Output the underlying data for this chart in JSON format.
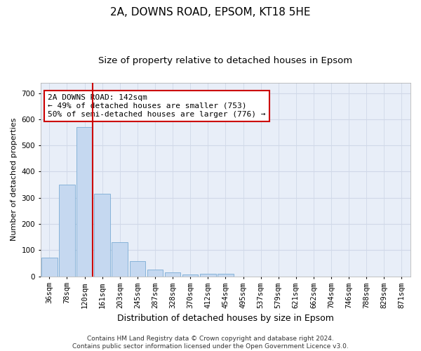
{
  "title1": "2A, DOWNS ROAD, EPSOM, KT18 5HE",
  "title2": "Size of property relative to detached houses in Epsom",
  "xlabel": "Distribution of detached houses by size in Epsom",
  "ylabel": "Number of detached properties",
  "bar_labels": [
    "36sqm",
    "78sqm",
    "120sqm",
    "161sqm",
    "203sqm",
    "245sqm",
    "287sqm",
    "328sqm",
    "370sqm",
    "412sqm",
    "454sqm",
    "495sqm",
    "537sqm",
    "579sqm",
    "621sqm",
    "662sqm",
    "704sqm",
    "746sqm",
    "788sqm",
    "829sqm",
    "871sqm"
  ],
  "bar_values": [
    70,
    350,
    570,
    315,
    130,
    57,
    25,
    14,
    8,
    10,
    10,
    0,
    0,
    0,
    0,
    0,
    0,
    0,
    0,
    0,
    0
  ],
  "bar_color": "#c5d8f0",
  "bar_edge_color": "#7aacd4",
  "grid_color": "#d0d8e8",
  "bg_color": "#e8eef8",
  "red_line_x": 2.45,
  "red_line_color": "#cc0000",
  "annotation_text": "2A DOWNS ROAD: 142sqm\n← 49% of detached houses are smaller (753)\n50% of semi-detached houses are larger (776) →",
  "annotation_box_color": "#ffffff",
  "annotation_box_edge": "#cc0000",
  "ylim": [
    0,
    740
  ],
  "yticks": [
    0,
    100,
    200,
    300,
    400,
    500,
    600,
    700
  ],
  "footer": "Contains HM Land Registry data © Crown copyright and database right 2024.\nContains public sector information licensed under the Open Government Licence v3.0.",
  "title1_fontsize": 11,
  "title2_fontsize": 9.5,
  "xlabel_fontsize": 9,
  "ylabel_fontsize": 8,
  "tick_fontsize": 7.5,
  "annotation_fontsize": 8,
  "footer_fontsize": 6.5
}
